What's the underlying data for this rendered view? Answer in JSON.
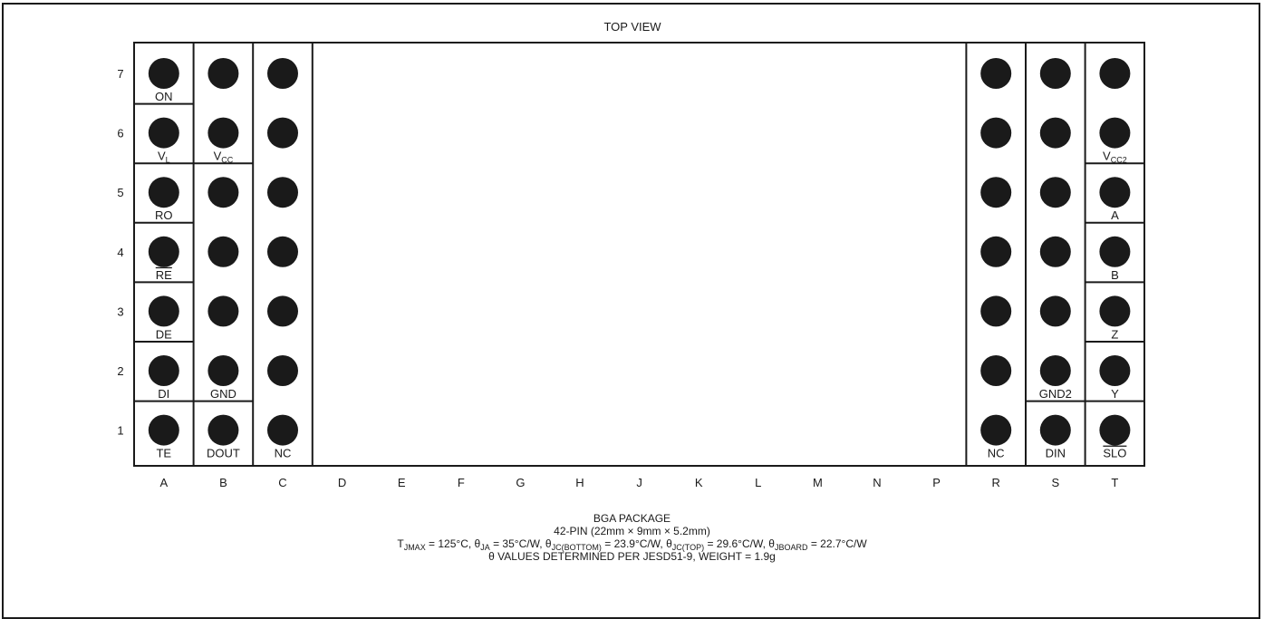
{
  "title": "TOP VIEW",
  "rows": [
    "7",
    "6",
    "5",
    "4",
    "3",
    "2",
    "1"
  ],
  "columns": [
    "A",
    "B",
    "C",
    "D",
    "E",
    "F",
    "G",
    "H",
    "J",
    "K",
    "L",
    "M",
    "N",
    "P",
    "R",
    "S",
    "T"
  ],
  "pins": [
    {
      "col": "A",
      "row": "7",
      "label": "ON"
    },
    {
      "col": "A",
      "row": "6",
      "label": "V",
      "sub": "L"
    },
    {
      "col": "A",
      "row": "5",
      "label": "RO"
    },
    {
      "col": "A",
      "row": "4",
      "label": "RE",
      "overline": true
    },
    {
      "col": "A",
      "row": "3",
      "label": "DE"
    },
    {
      "col": "A",
      "row": "2",
      "label": "DI"
    },
    {
      "col": "A",
      "row": "1",
      "label": "TE"
    },
    {
      "col": "B",
      "row": "7",
      "label": ""
    },
    {
      "col": "B",
      "row": "6",
      "label": "V",
      "sub": "CC"
    },
    {
      "col": "B",
      "row": "5",
      "label": ""
    },
    {
      "col": "B",
      "row": "4",
      "label": ""
    },
    {
      "col": "B",
      "row": "3",
      "label": ""
    },
    {
      "col": "B",
      "row": "2",
      "label": "GND"
    },
    {
      "col": "B",
      "row": "1",
      "label": "DOUT"
    },
    {
      "col": "C",
      "row": "7",
      "label": ""
    },
    {
      "col": "C",
      "row": "6",
      "label": ""
    },
    {
      "col": "C",
      "row": "5",
      "label": ""
    },
    {
      "col": "C",
      "row": "4",
      "label": ""
    },
    {
      "col": "C",
      "row": "3",
      "label": ""
    },
    {
      "col": "C",
      "row": "2",
      "label": ""
    },
    {
      "col": "C",
      "row": "1",
      "label": "NC"
    },
    {
      "col": "R",
      "row": "7",
      "label": ""
    },
    {
      "col": "R",
      "row": "6",
      "label": ""
    },
    {
      "col": "R",
      "row": "5",
      "label": ""
    },
    {
      "col": "R",
      "row": "4",
      "label": ""
    },
    {
      "col": "R",
      "row": "3",
      "label": ""
    },
    {
      "col": "R",
      "row": "2",
      "label": ""
    },
    {
      "col": "R",
      "row": "1",
      "label": "NC"
    },
    {
      "col": "S",
      "row": "7",
      "label": ""
    },
    {
      "col": "S",
      "row": "6",
      "label": ""
    },
    {
      "col": "S",
      "row": "5",
      "label": ""
    },
    {
      "col": "S",
      "row": "4",
      "label": ""
    },
    {
      "col": "S",
      "row": "3",
      "label": ""
    },
    {
      "col": "S",
      "row": "2",
      "label": "GND2"
    },
    {
      "col": "S",
      "row": "1",
      "label": "DIN"
    },
    {
      "col": "T",
      "row": "7",
      "label": ""
    },
    {
      "col": "T",
      "row": "6",
      "label": "V",
      "sub": "CC2"
    },
    {
      "col": "T",
      "row": "5",
      "label": "A"
    },
    {
      "col": "T",
      "row": "4",
      "label": "B"
    },
    {
      "col": "T",
      "row": "3",
      "label": "Z"
    },
    {
      "col": "T",
      "row": "2",
      "label": "Y"
    },
    {
      "col": "T",
      "row": "1",
      "label": "SLO",
      "overline": true
    }
  ],
  "groups": [
    {
      "col": "A",
      "rows": [
        "7"
      ]
    },
    {
      "col": "A",
      "rows": [
        "6"
      ]
    },
    {
      "col": "A",
      "rows": [
        "5"
      ]
    },
    {
      "col": "A",
      "rows": [
        "4"
      ]
    },
    {
      "col": "A",
      "rows": [
        "3"
      ]
    },
    {
      "col": "A",
      "rows": [
        "2"
      ]
    },
    {
      "col": "A",
      "rows": [
        "1"
      ]
    },
    {
      "col": "B",
      "rows": [
        "7",
        "6"
      ]
    },
    {
      "col": "B",
      "rows": [
        "5",
        "4",
        "3",
        "2"
      ]
    },
    {
      "col": "B",
      "rows": [
        "1"
      ]
    },
    {
      "col": "C",
      "rows": [
        "7",
        "6",
        "5",
        "4",
        "3",
        "2",
        "1"
      ]
    },
    {
      "col": "R",
      "rows": [
        "7",
        "6",
        "5",
        "4",
        "3",
        "2",
        "1"
      ]
    },
    {
      "col": "S",
      "rows": [
        "7",
        "6",
        "5",
        "4",
        "3",
        "2"
      ]
    },
    {
      "col": "S",
      "rows": [
        "1"
      ]
    },
    {
      "col": "T",
      "rows": [
        "7",
        "6"
      ]
    },
    {
      "col": "T",
      "rows": [
        "5"
      ]
    },
    {
      "col": "T",
      "rows": [
        "4"
      ]
    },
    {
      "col": "T",
      "rows": [
        "3"
      ]
    },
    {
      "col": "T",
      "rows": [
        "2"
      ]
    },
    {
      "col": "T",
      "rows": [
        "1"
      ]
    }
  ],
  "caption": {
    "line1": "BGA PACKAGE",
    "line2": "42-PIN (22mm × 9mm × 5.2mm)",
    "line3": {
      "t": "T",
      "t_sub": "JMAX",
      "t_val": " = 125°C, ",
      "ja": "θ",
      "ja_sub": "JA",
      "ja_val": " = 35°C/W, ",
      "jcb": "θ",
      "jcb_sub": "JC(BOTTOM)",
      "jcb_val": " = 23.9°C/W, ",
      "jct": "θ",
      "jct_sub": "JC(TOP)",
      "jct_val": " = 29.6°C/W, ",
      "jb": "θ",
      "jb_sub": "JBOARD",
      "jb_val": " = 22.7°C/W"
    },
    "line4": "θ VALUES DETERMINED PER JESD51-9, WEIGHT = 1.9g"
  }
}
